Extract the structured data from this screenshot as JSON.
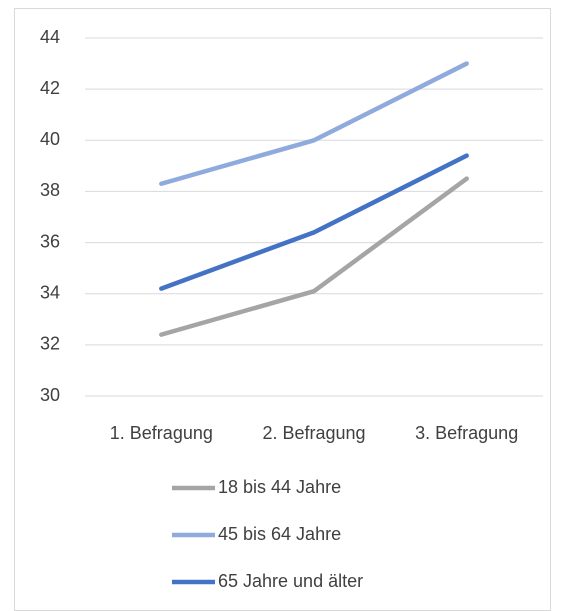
{
  "chart_data": {
    "type": "line",
    "categories": [
      "1. Befragung",
      "2. Befragung",
      "3. Befragung"
    ],
    "series": [
      {
        "name": "18 bis 44 Jahre",
        "color": "#a5a5a5",
        "values": [
          32.4,
          34.1,
          38.5
        ]
      },
      {
        "name": "45 bis 64 Jahre",
        "color": "#8faadc",
        "values": [
          38.3,
          40.0,
          43.0
        ]
      },
      {
        "name": "65 Jahre und älter",
        "color": "#4472c4",
        "values": [
          34.2,
          36.4,
          39.4
        ]
      }
    ],
    "ylim": [
      30,
      44
    ],
    "yticks": [
      30,
      32,
      34,
      36,
      38,
      40,
      42,
      44
    ],
    "grid": true,
    "legend": "bottom"
  }
}
